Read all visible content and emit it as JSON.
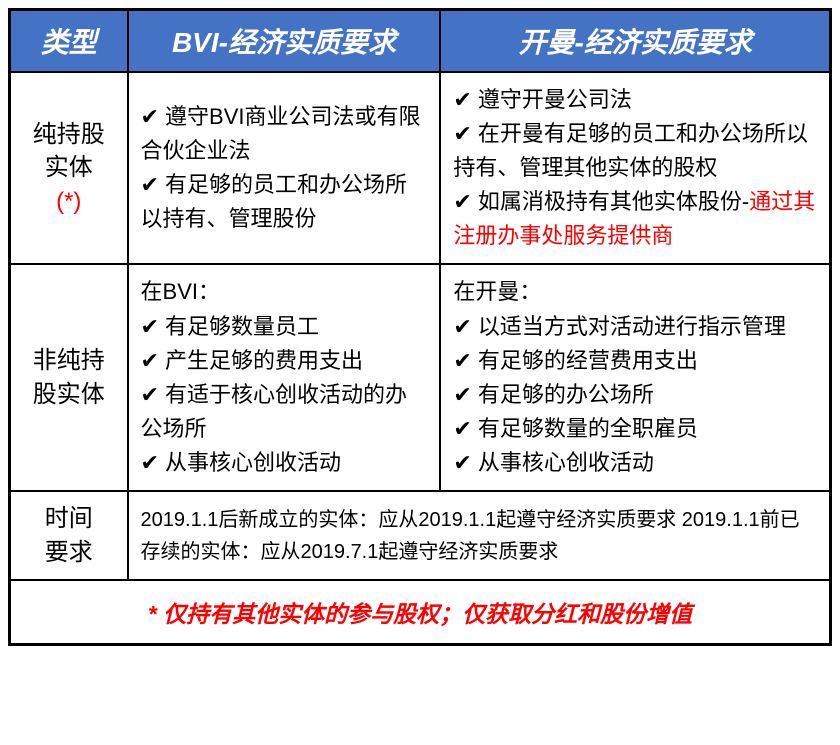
{
  "colors": {
    "header_bg": "#4472c4",
    "header_fg": "#ffffff",
    "border": "#000000",
    "highlight": "#ff0000",
    "text": "#000000"
  },
  "headers": {
    "type": "类型",
    "bvi": "BVI-经济实质要求",
    "cayman": "开曼-经济实质要求"
  },
  "rows": {
    "pure": {
      "label_line1": "纯持股",
      "label_line2": "实体",
      "label_star": "(*)",
      "bvi": [
        "✔ 遵守BVI商业公司法或有限合伙企业法",
        "✔ 有足够的员工和办公场所以持有、管理股份"
      ],
      "cayman_plain": [
        "✔ 遵守开曼公司法",
        "✔ 在开曼有足够的员工和办公场所以持有、管理其他实体的股权"
      ],
      "cayman_mixed_prefix": "✔ 如属消极持有其他实体股份-",
      "cayman_mixed_red": "通过其注册办事处服务提供商"
    },
    "nonpure": {
      "label_line1": "非纯持",
      "label_line2": "股实体",
      "bvi_head": "在BVI：",
      "bvi": [
        "✔ 有足够数量员工",
        "✔ 产生足够的费用支出",
        "✔ 有适于核心创收活动的办公场所",
        "✔ 从事核心创收活动"
      ],
      "cayman_head": "在开曼：",
      "cayman": [
        "✔ 以适当方式对活动进行指示管理",
        "✔ 有足够的经营费用支出",
        "✔ 有足够的办公场所",
        "✔ 有足够数量的全职雇员",
        "✔ 从事核心创收活动"
      ]
    },
    "time": {
      "label_line1": "时间",
      "label_line2": "要求",
      "line1": "2019.1.1后新成立的实体：应从2019.1.1起遵守经济实质要求",
      "line2": "2019.1.1前已存续的实体：应从2019.7.1起遵守经济实质要求"
    }
  },
  "footer": "* 仅持有其他实体的参与股权；仅获取分红和股份增值"
}
